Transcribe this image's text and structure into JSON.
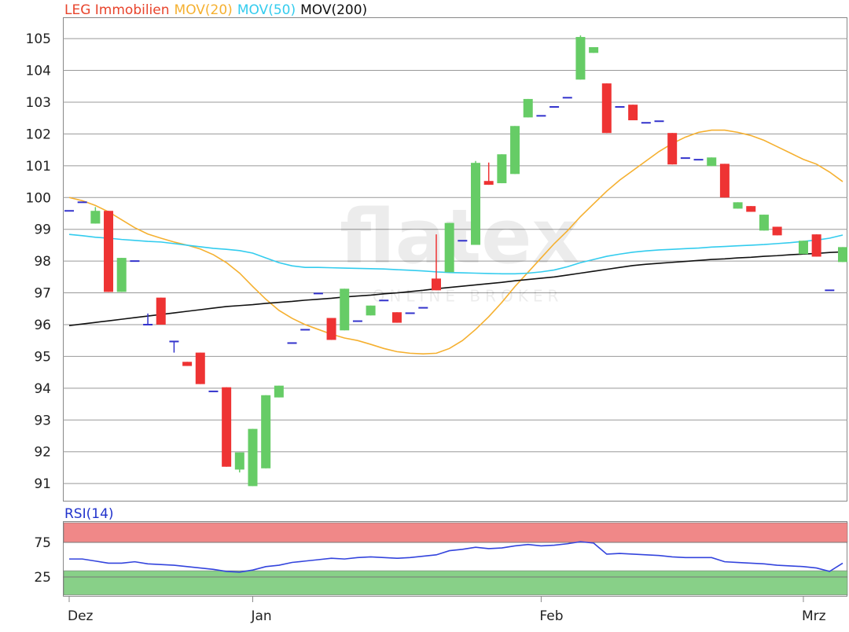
{
  "chart_data": [
    {
      "type": "candlestick",
      "title": "LEG Immobilien",
      "title_color": "#e8442c",
      "watermark": "flatex",
      "watermark_sub": "ONLINE BROKER",
      "categories": [
        "Dez",
        null,
        null,
        null,
        null,
        null,
        null,
        null,
        null,
        null,
        null,
        null,
        null,
        null,
        "Jan",
        null,
        null,
        null,
        null,
        null,
        null,
        null,
        null,
        null,
        null,
        null,
        null,
        null,
        null,
        null,
        null,
        null,
        null,
        null,
        null,
        null,
        "Feb",
        null,
        null,
        null,
        null,
        null,
        null,
        null,
        null,
        null,
        null,
        null,
        null,
        null,
        null,
        null,
        null,
        null,
        null,
        null,
        "Mrz",
        null,
        null,
        null
      ],
      "open": [
        99.58,
        99.85,
        99.18,
        99.58,
        97.03,
        98.0,
        96.0,
        96.85,
        95.47,
        94.83,
        95.12,
        93.9,
        94.03,
        91.44,
        90.92,
        91.48,
        93.71,
        95.42,
        95.84,
        96.98,
        96.21,
        95.82,
        96.11,
        96.29,
        96.76,
        96.39,
        96.36,
        96.53,
        97.45,
        97.65,
        98.64,
        98.51,
        100.52,
        100.45,
        100.74,
        102.52,
        102.57,
        102.85,
        103.14,
        103.71,
        104.55,
        103.59,
        102.85,
        102.92,
        102.35,
        102.4,
        102.03,
        101.24,
        101.19,
        100.99,
        101.06,
        99.65,
        99.73,
        98.96,
        99.08,
        null,
        98.22,
        98.84,
        97.08,
        97.97
      ],
      "high": [
        99.58,
        99.85,
        99.7,
        99.58,
        98.1,
        98.0,
        96.35,
        96.85,
        95.47,
        94.83,
        95.12,
        93.9,
        94.03,
        91.98,
        92.72,
        93.78,
        94.08,
        95.42,
        95.84,
        96.98,
        96.21,
        97.13,
        96.11,
        96.6,
        96.76,
        96.39,
        96.36,
        96.53,
        98.84,
        99.2,
        98.64,
        101.15,
        101.1,
        101.36,
        102.25,
        103.1,
        102.57,
        102.85,
        103.14,
        105.1,
        104.73,
        103.59,
        102.85,
        102.92,
        102.35,
        102.4,
        102.03,
        101.24,
        101.19,
        101.26,
        101.06,
        99.85,
        99.73,
        99.46,
        99.08,
        null,
        98.64,
        98.84,
        97.08,
        98.44
      ],
      "low": [
        99.58,
        99.85,
        99.18,
        97.03,
        97.03,
        98.0,
        96.0,
        96.0,
        95.12,
        94.7,
        94.13,
        93.9,
        91.53,
        91.35,
        90.92,
        91.48,
        93.71,
        95.42,
        95.84,
        96.98,
        95.52,
        95.82,
        96.11,
        96.29,
        96.76,
        96.06,
        96.36,
        96.53,
        97.08,
        97.65,
        98.64,
        98.51,
        100.4,
        100.45,
        100.74,
        102.52,
        102.57,
        102.85,
        103.14,
        103.71,
        104.55,
        102.03,
        102.85,
        102.43,
        102.35,
        102.4,
        101.04,
        101.24,
        101.19,
        100.99,
        100.0,
        99.65,
        99.55,
        98.96,
        98.81,
        null,
        98.22,
        98.14,
        97.08,
        97.97
      ],
      "close": [
        99.58,
        99.85,
        99.58,
        97.03,
        98.1,
        98.0,
        96.0,
        96.0,
        95.47,
        94.7,
        94.13,
        93.9,
        91.53,
        91.98,
        92.72,
        93.78,
        94.08,
        95.42,
        95.84,
        96.98,
        95.52,
        97.13,
        96.11,
        96.6,
        96.76,
        96.06,
        96.36,
        96.53,
        97.08,
        99.2,
        98.64,
        101.09,
        100.4,
        101.36,
        102.25,
        103.1,
        102.57,
        102.85,
        103.14,
        105.05,
        104.73,
        102.03,
        102.85,
        102.43,
        102.35,
        102.4,
        101.04,
        101.24,
        101.19,
        101.26,
        100.0,
        99.85,
        99.55,
        99.46,
        98.81,
        null,
        98.64,
        98.14,
        97.08,
        98.44
      ],
      "up_color": "#66cc66",
      "down_color": "#ee3333",
      "doji_color": "#3333cc",
      "series": [
        {
          "name": "MOV(20)",
          "color": "#f5b030",
          "values": [
            100.0,
            99.9,
            99.75,
            99.55,
            99.3,
            99.05,
            98.85,
            98.72,
            98.6,
            98.5,
            98.38,
            98.2,
            97.95,
            97.62,
            97.2,
            96.8,
            96.45,
            96.2,
            96.0,
            95.85,
            95.7,
            95.58,
            95.5,
            95.38,
            95.25,
            95.15,
            95.1,
            95.08,
            95.1,
            95.25,
            95.5,
            95.85,
            96.25,
            96.7,
            97.2,
            97.65,
            98.1,
            98.55,
            98.95,
            99.4,
            99.8,
            100.2,
            100.55,
            100.85,
            101.15,
            101.45,
            101.7,
            101.9,
            102.05,
            102.12,
            102.12,
            102.05,
            101.95,
            101.8,
            101.6,
            101.4,
            101.2,
            101.05,
            100.8,
            100.5
          ]
        },
        {
          "name": "MOV(50)",
          "color": "#33ccee",
          "values": [
            98.84,
            98.8,
            98.75,
            98.72,
            98.68,
            98.65,
            98.62,
            98.6,
            98.55,
            98.5,
            98.45,
            98.4,
            98.37,
            98.33,
            98.25,
            98.1,
            97.95,
            97.85,
            97.8,
            97.8,
            97.79,
            97.78,
            97.77,
            97.76,
            97.75,
            97.73,
            97.71,
            97.69,
            97.66,
            97.64,
            97.63,
            97.62,
            97.61,
            97.6,
            97.6,
            97.62,
            97.66,
            97.72,
            97.82,
            97.95,
            98.05,
            98.15,
            98.22,
            98.28,
            98.32,
            98.35,
            98.37,
            98.39,
            98.41,
            98.44,
            98.46,
            98.48,
            98.5,
            98.52,
            98.55,
            98.58,
            98.62,
            98.66,
            98.72,
            98.82
          ]
        },
        {
          "name": "MOV(200)",
          "color": "#111111",
          "values": [
            95.97,
            96.02,
            96.07,
            96.12,
            96.17,
            96.22,
            96.27,
            96.32,
            96.37,
            96.42,
            96.47,
            96.52,
            96.57,
            96.6,
            96.63,
            96.67,
            96.7,
            96.73,
            96.77,
            96.8,
            96.83,
            96.87,
            96.9,
            96.93,
            96.97,
            97.0,
            97.04,
            97.08,
            97.13,
            97.17,
            97.21,
            97.25,
            97.29,
            97.33,
            97.38,
            97.42,
            97.46,
            97.5,
            97.56,
            97.62,
            97.68,
            97.74,
            97.8,
            97.86,
            97.9,
            97.93,
            97.96,
            97.99,
            98.02,
            98.05,
            98.07,
            98.1,
            98.12,
            98.15,
            98.17,
            98.2,
            98.22,
            98.24,
            98.27,
            98.29
          ]
        }
      ],
      "ylim": [
        90.46,
        105.67
      ],
      "yticks": [
        91,
        92,
        93,
        94,
        95,
        96,
        97,
        98,
        99,
        100,
        101,
        102,
        103,
        104,
        105
      ],
      "grid": true
    },
    {
      "type": "line",
      "title": "RSI(14)",
      "title_color": "#2233cc",
      "series": [
        {
          "name": "RSI(14)",
          "color": "#3344dd",
          "values": [
            51,
            51,
            48,
            45,
            45,
            47,
            44,
            43,
            42,
            40,
            38,
            36,
            33,
            32,
            35,
            40,
            42,
            46,
            48,
            50,
            52,
            51,
            53,
            54,
            53,
            52,
            53,
            55,
            57,
            63,
            65,
            68,
            66,
            67,
            70,
            72,
            70,
            71,
            73,
            76,
            74,
            58,
            59,
            58,
            57,
            56,
            54,
            53,
            53,
            53,
            47,
            46,
            45,
            44,
            42,
            41,
            40,
            38,
            33,
            45
          ]
        }
      ],
      "bands": [
        {
          "from": 75,
          "to": 104,
          "color": "#f08888"
        },
        {
          "from": -1,
          "to": 34,
          "color": "#88d088"
        }
      ],
      "ylim": [
        -2.3,
        105.7
      ],
      "yticks": [
        25,
        75
      ],
      "grid": true
    }
  ]
}
